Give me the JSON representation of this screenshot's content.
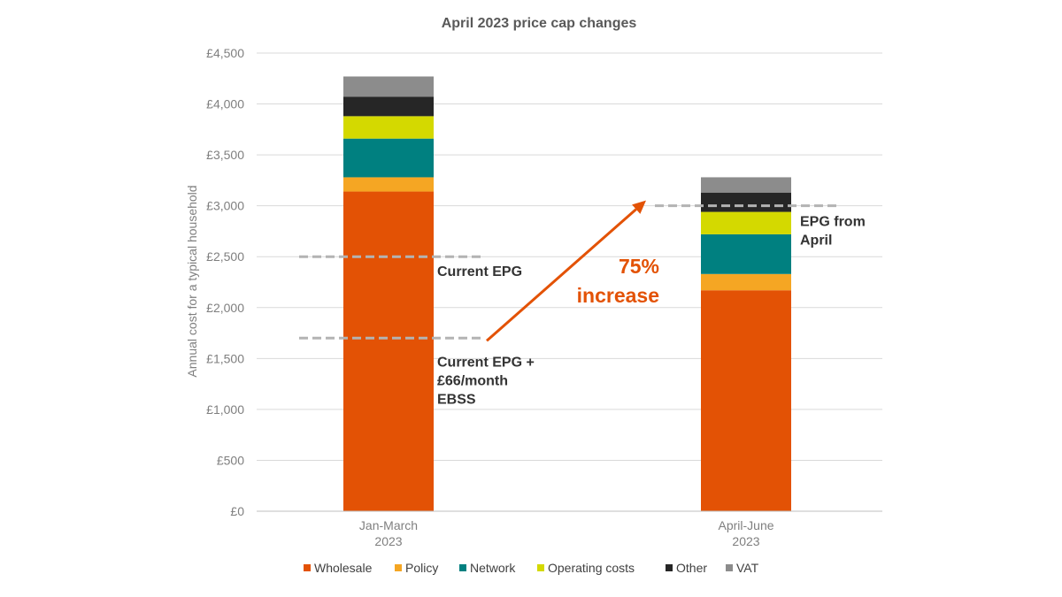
{
  "chart_data": {
    "type": "bar",
    "stacked": true,
    "title": "April 2023 price cap changes",
    "xlabel": "",
    "ylabel": "Annual cost for a typical household",
    "ylim": [
      0,
      4500
    ],
    "yticks": [
      "£0",
      "£500",
      "£1,000",
      "£1,500",
      "£2,000",
      "£2,500",
      "£3,000",
      "£3,500",
      "£4,000",
      "£4,500"
    ],
    "yticks_values": [
      0,
      500,
      1000,
      1500,
      2000,
      2500,
      3000,
      3500,
      4000,
      4500
    ],
    "grid": true,
    "legend_position": "bottom",
    "categories": [
      [
        "Jan-March",
        "2023"
      ],
      [
        "April-June",
        "2023"
      ]
    ],
    "series": [
      {
        "name": "Wholesale",
        "color": "#e35205",
        "values": [
          3140,
          2170
        ]
      },
      {
        "name": "Policy",
        "color": "#f5a623",
        "values": [
          140,
          160
        ]
      },
      {
        "name": "Network",
        "color": "#008080",
        "values": [
          380,
          390
        ]
      },
      {
        "name": "Operating costs",
        "color": "#d4d900",
        "values": [
          220,
          220
        ]
      },
      {
        "name": "Other",
        "color": "#262626",
        "values": [
          190,
          190
        ]
      },
      {
        "name": "VAT",
        "color": "#8c8c8c",
        "values": [
          200,
          150
        ]
      }
    ],
    "reference_lines": [
      {
        "value": 2500,
        "bar": 0,
        "label": [
          "Current EPG"
        ]
      },
      {
        "value": 1700,
        "bar": 0,
        "label": [
          "Current EPG +",
          "£66/month",
          "EBSS"
        ]
      },
      {
        "value": 3000,
        "bar": 1,
        "label": [
          "EPG from",
          "April"
        ]
      }
    ],
    "callout": {
      "text": [
        "75%",
        "increase"
      ],
      "color": "#e35205",
      "from": 1700,
      "to": 3000
    }
  }
}
